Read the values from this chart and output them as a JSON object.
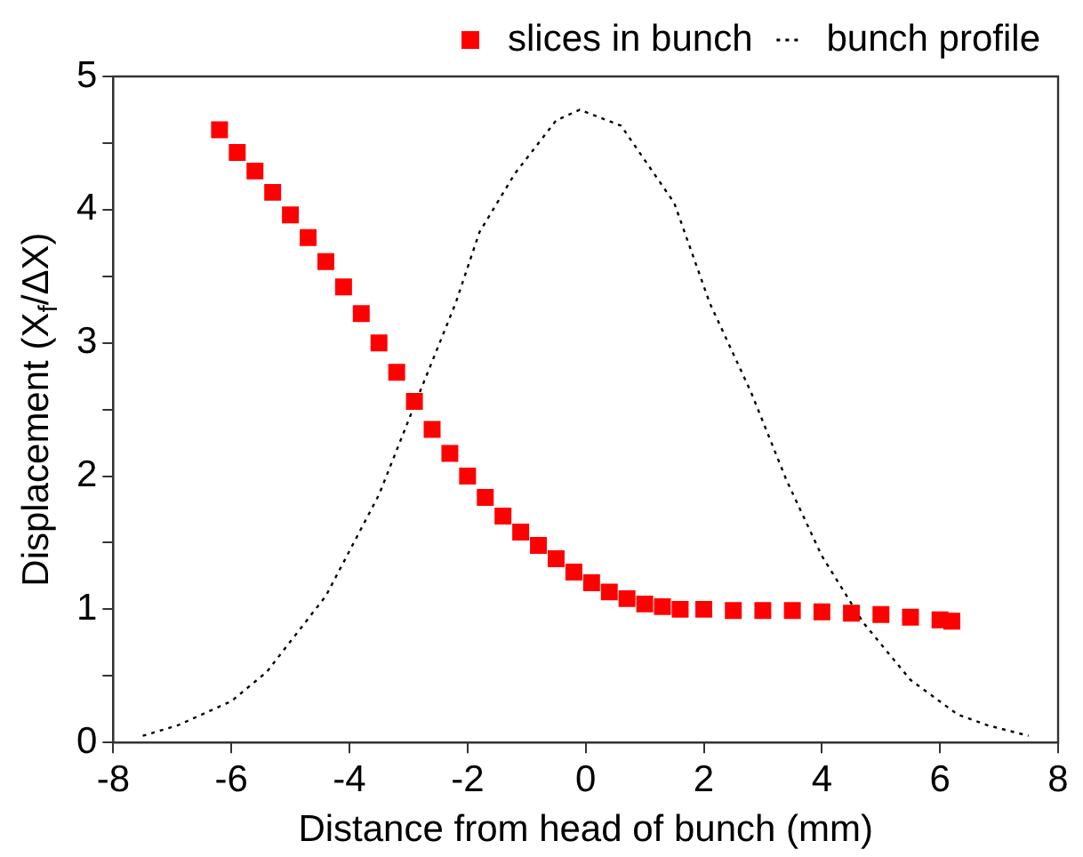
{
  "chart_data": {
    "type": "scatter",
    "xlabel": "Distance from head of bunch (mm)",
    "ylabel": "Displacement (X$_{f}$/ΔX)",
    "xlim": [
      -8,
      8
    ],
    "xticks": [
      -8,
      -6,
      -4,
      -2,
      0,
      2,
      4,
      6,
      8
    ],
    "ylim": [
      0,
      5
    ],
    "yticks": [
      0,
      {
        "value": 0.5,
        "label": null
      },
      1,
      {
        "value": 1.5,
        "label": null
      },
      2,
      {
        "value": 2.5,
        "label": null
      },
      3,
      {
        "value": 3.5,
        "label": null
      },
      4,
      {
        "value": 4.5,
        "label": null
      },
      5
    ],
    "grid": false,
    "legend": "top right",
    "marker": "square",
    "series": [
      {
        "name": "slices in bunch",
        "color": "#ff0000",
        "x": [
          -6.2,
          -5.9,
          -5.6,
          -5.3,
          -5.0,
          -4.7,
          -4.4,
          -4.1,
          -3.8,
          -3.5,
          -3.2,
          -2.9,
          -2.6,
          -2.3,
          -2.0,
          -1.7,
          -1.4,
          -1.1,
          -0.8,
          -0.5,
          -0.2,
          0.1,
          0.4,
          0.7,
          1.0,
          1.3,
          1.6,
          2.0,
          2.5,
          3.0,
          3.5,
          4.0,
          4.5,
          5.0,
          5.5,
          6.0,
          6.2
        ],
        "values": [
          4.6,
          4.43,
          4.29,
          4.13,
          3.96,
          3.79,
          3.61,
          3.42,
          3.22,
          3.0,
          2.78,
          2.56,
          2.35,
          2.17,
          2.0,
          1.84,
          1.7,
          1.58,
          1.48,
          1.38,
          1.28,
          1.2,
          1.13,
          1.08,
          1.04,
          1.02,
          1.0,
          1.0,
          0.99,
          0.99,
          0.99,
          0.98,
          0.97,
          0.96,
          0.94,
          0.92,
          0.91
        ]
      },
      {
        "name": "bunch profile",
        "color": "#000000",
        "type": "line",
        "marker": "none",
        "line_style": "dotted",
        "x": [
          -7.5,
          -6.9,
          -6.0,
          -5.4,
          -4.4,
          -3.5,
          -2.9,
          -2.2,
          -1.8,
          -1.2,
          -0.5,
          -0.1,
          0.6,
          1.5,
          2.1,
          2.8,
          3.4,
          4.0,
          4.7,
          5.5,
          6.3,
          6.8,
          7.5
        ],
        "values": [
          0.05,
          0.13,
          0.31,
          0.53,
          1.1,
          1.86,
          2.53,
          3.3,
          3.83,
          4.27,
          4.67,
          4.75,
          4.63,
          4.05,
          3.3,
          2.63,
          1.97,
          1.4,
          0.9,
          0.47,
          0.21,
          0.13,
          0.05
        ]
      }
    ]
  }
}
